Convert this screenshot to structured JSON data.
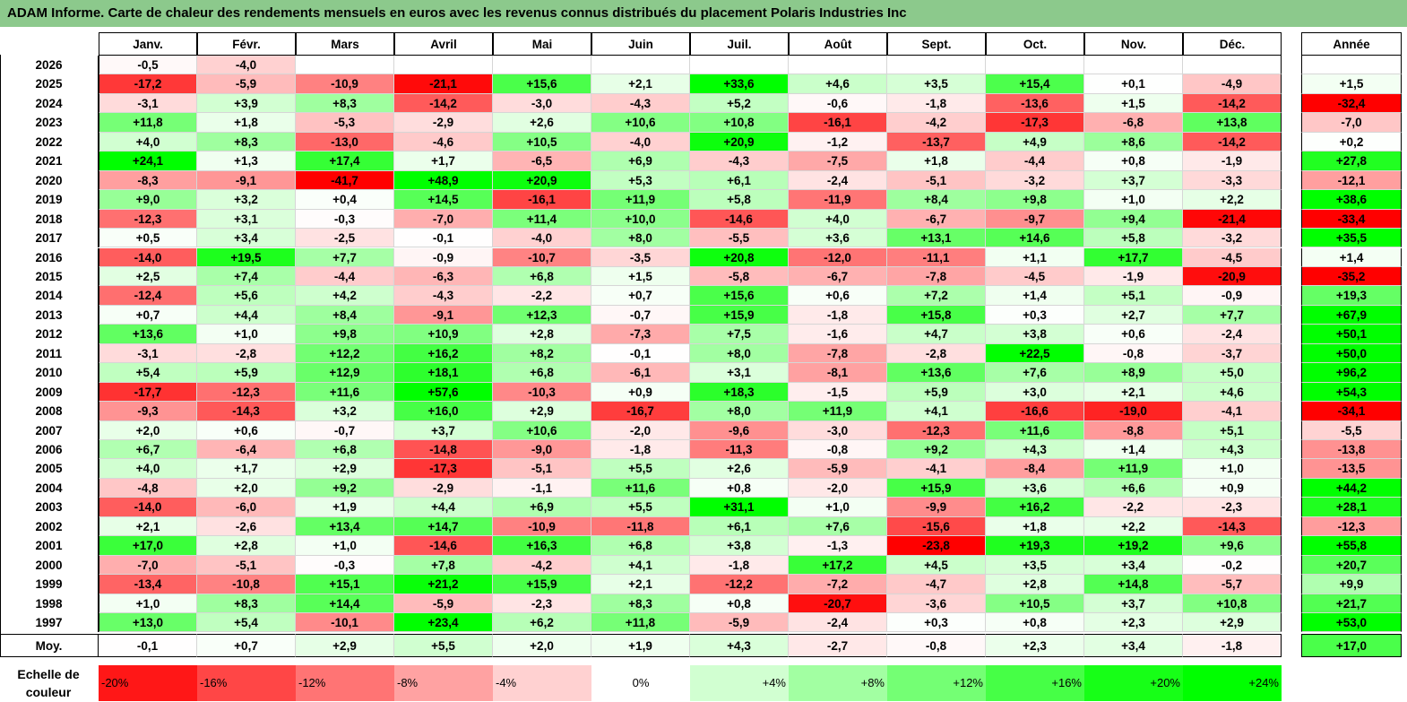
{
  "title": "ADAM Informe. Carte de chaleur des rendements mensuels en euros avec les revenus connus distribués du placement Polaris Industries Inc",
  "chart_data": {
    "type": "heatmap",
    "columns": [
      "Janv.",
      "Févr.",
      "Mars",
      "Avril",
      "Mai",
      "Juin",
      "Juil.",
      "Août",
      "Sept.",
      "Oct.",
      "Nov.",
      "Déc."
    ],
    "year_column": "Année",
    "rows": [
      {
        "label": "2026",
        "values": [
          "-0,5",
          "-4,0",
          "",
          "",
          "",
          "",
          "",
          "",
          "",
          "",
          "",
          ""
        ],
        "year": ""
      },
      {
        "label": "2025",
        "values": [
          "-17,2",
          "-5,9",
          "-10,9",
          "-21,1",
          "+15,6",
          "+2,1",
          "+33,6",
          "+4,6",
          "+3,5",
          "+15,4",
          "+0,1",
          "-4,9"
        ],
        "year": "+1,5"
      },
      {
        "label": "2024",
        "values": [
          "-3,1",
          "+3,9",
          "+8,3",
          "-14,2",
          "-3,0",
          "-4,3",
          "+5,2",
          "-0,6",
          "-1,8",
          "-13,6",
          "+1,5",
          "-14,2"
        ],
        "year": "-32,4"
      },
      {
        "label": "2023",
        "values": [
          "+11,8",
          "+1,8",
          "-5,3",
          "-2,9",
          "+2,6",
          "+10,6",
          "+10,8",
          "-16,1",
          "-4,2",
          "-17,3",
          "-6,8",
          "+13,8"
        ],
        "year": "-7,0"
      },
      {
        "label": "2022",
        "values": [
          "+4,0",
          "+8,3",
          "-13,0",
          "-4,6",
          "+10,5",
          "-4,0",
          "+20,9",
          "-1,2",
          "-13,7",
          "+4,9",
          "+8,6",
          "-14,2"
        ],
        "year": "+0,2"
      },
      {
        "label": "2021",
        "values": [
          "+24,1",
          "+1,3",
          "+17,4",
          "+1,7",
          "-6,5",
          "+6,9",
          "-4,3",
          "-7,5",
          "+1,8",
          "-4,4",
          "+0,8",
          "-1,9"
        ],
        "year": "+27,8"
      },
      {
        "label": "2020",
        "values": [
          "-8,3",
          "-9,1",
          "-41,7",
          "+48,9",
          "+20,9",
          "+5,3",
          "+6,1",
          "-2,4",
          "-5,1",
          "-3,2",
          "+3,7",
          "-3,3"
        ],
        "year": "-12,1"
      },
      {
        "label": "2019",
        "values": [
          "+9,0",
          "+3,2",
          "+0,4",
          "+14,5",
          "-16,1",
          "+11,9",
          "+5,8",
          "-11,9",
          "+8,4",
          "+9,8",
          "+1,0",
          "+2,2"
        ],
        "year": "+38,6"
      },
      {
        "label": "2018",
        "values": [
          "-12,3",
          "+3,1",
          "-0,3",
          "-7,0",
          "+11,4",
          "+10,0",
          "-14,6",
          "+4,0",
          "-6,7",
          "-9,7",
          "+9,4",
          "-21,4"
        ],
        "year": "-33,4"
      },
      {
        "label": "2017",
        "values": [
          "+0,5",
          "+3,4",
          "-2,5",
          "-0,1",
          "-4,0",
          "+8,0",
          "-5,5",
          "+3,6",
          "+13,1",
          "+14,6",
          "+5,8",
          "-3,2"
        ],
        "year": "+35,5"
      },
      {
        "label": "2016",
        "values": [
          "-14,0",
          "+19,5",
          "+7,7",
          "-0,9",
          "-10,7",
          "-3,5",
          "+20,8",
          "-12,0",
          "-11,1",
          "+1,1",
          "+17,7",
          "-4,5"
        ],
        "year": "+1,4"
      },
      {
        "label": "2015",
        "values": [
          "+2,5",
          "+7,4",
          "-4,4",
          "-6,3",
          "+6,8",
          "+1,5",
          "-5,8",
          "-6,7",
          "-7,8",
          "-4,5",
          "-1,9",
          "-20,9"
        ],
        "year": "-35,2"
      },
      {
        "label": "2014",
        "values": [
          "-12,4",
          "+5,6",
          "+4,2",
          "-4,3",
          "-2,2",
          "+0,7",
          "+15,6",
          "+0,6",
          "+7,2",
          "+1,4",
          "+5,1",
          "-0,9"
        ],
        "year": "+19,3"
      },
      {
        "label": "2013",
        "values": [
          "+0,7",
          "+4,4",
          "+8,4",
          "-9,1",
          "+12,3",
          "-0,7",
          "+15,9",
          "-1,8",
          "+15,8",
          "+0,3",
          "+2,7",
          "+7,7"
        ],
        "year": "+67,9"
      },
      {
        "label": "2012",
        "values": [
          "+13,6",
          "+1,0",
          "+9,8",
          "+10,9",
          "+2,8",
          "-7,3",
          "+7,5",
          "-1,6",
          "+4,7",
          "+3,8",
          "+0,6",
          "-2,4"
        ],
        "year": "+50,1"
      },
      {
        "label": "2011",
        "values": [
          "-3,1",
          "-2,8",
          "+12,2",
          "+16,2",
          "+8,2",
          "-0,1",
          "+8,0",
          "-7,8",
          "-2,8",
          "+22,5",
          "-0,8",
          "-3,7"
        ],
        "year": "+50,0"
      },
      {
        "label": "2010",
        "values": [
          "+5,4",
          "+5,9",
          "+12,9",
          "+18,1",
          "+6,8",
          "-6,1",
          "+3,1",
          "-8,1",
          "+13,6",
          "+7,6",
          "+8,9",
          "+5,0"
        ],
        "year": "+96,2"
      },
      {
        "label": "2009",
        "values": [
          "-17,7",
          "-12,3",
          "+11,6",
          "+57,6",
          "-10,3",
          "+0,9",
          "+18,3",
          "-1,5",
          "+5,9",
          "+3,0",
          "+2,1",
          "+4,6"
        ],
        "year": "+54,3"
      },
      {
        "label": "2008",
        "values": [
          "-9,3",
          "-14,3",
          "+3,2",
          "+16,0",
          "+2,9",
          "-16,7",
          "+8,0",
          "+11,9",
          "+4,1",
          "-16,6",
          "-19,0",
          "-4,1"
        ],
        "year": "-34,1"
      },
      {
        "label": "2007",
        "values": [
          "+2,0",
          "+0,6",
          "-0,7",
          "+3,7",
          "+10,6",
          "-2,0",
          "-9,6",
          "-3,0",
          "-12,3",
          "+11,6",
          "-8,8",
          "+5,1"
        ],
        "year": "-5,5"
      },
      {
        "label": "2006",
        "values": [
          "+6,7",
          "-6,4",
          "+6,8",
          "-14,8",
          "-9,0",
          "-1,8",
          "-11,3",
          "-0,8",
          "+9,2",
          "+4,3",
          "+1,4",
          "+4,3"
        ],
        "year": "-13,8"
      },
      {
        "label": "2005",
        "values": [
          "+4,0",
          "+1,7",
          "+2,9",
          "-17,3",
          "-5,1",
          "+5,5",
          "+2,6",
          "-5,9",
          "-4,1",
          "-8,4",
          "+11,9",
          "+1,0"
        ],
        "year": "-13,5"
      },
      {
        "label": "2004",
        "values": [
          "-4,8",
          "+2,0",
          "+9,2",
          "-2,9",
          "-1,1",
          "+11,6",
          "+0,8",
          "-2,0",
          "+15,9",
          "+3,6",
          "+6,6",
          "+0,9"
        ],
        "year": "+44,2"
      },
      {
        "label": "2003",
        "values": [
          "-14,0",
          "-6,0",
          "+1,9",
          "+4,4",
          "+6,9",
          "+5,5",
          "+31,1",
          "+1,0",
          "-9,9",
          "+16,2",
          "-2,2",
          "-2,3"
        ],
        "year": "+28,1"
      },
      {
        "label": "2002",
        "values": [
          "+2,1",
          "-2,6",
          "+13,4",
          "+14,7",
          "-10,9",
          "-11,8",
          "+6,1",
          "+7,6",
          "-15,6",
          "+1,8",
          "+2,2",
          "-14,3"
        ],
        "year": "-12,3"
      },
      {
        "label": "2001",
        "values": [
          "+17,0",
          "+2,8",
          "+1,0",
          "-14,6",
          "+16,3",
          "+6,8",
          "+3,8",
          "-1,3",
          "-23,8",
          "+19,3",
          "+19,2",
          "+9,6"
        ],
        "year": "+55,8"
      },
      {
        "label": "2000",
        "values": [
          "-7,0",
          "-5,1",
          "-0,3",
          "+7,8",
          "-4,2",
          "+4,1",
          "-1,8",
          "+17,2",
          "+4,5",
          "+3,5",
          "+3,4",
          "-0,2"
        ],
        "year": "+20,7"
      },
      {
        "label": "1999",
        "values": [
          "-13,4",
          "-10,8",
          "+15,1",
          "+21,2",
          "+15,9",
          "+2,1",
          "-12,2",
          "-7,2",
          "-4,7",
          "+2,8",
          "+14,8",
          "-5,7"
        ],
        "year": "+9,9"
      },
      {
        "label": "1998",
        "values": [
          "+1,0",
          "+8,3",
          "+14,4",
          "-5,9",
          "-2,3",
          "+8,3",
          "+0,8",
          "-20,7",
          "-3,6",
          "+10,5",
          "+3,7",
          "+10,8"
        ],
        "year": "+21,7"
      },
      {
        "label": "1997",
        "values": [
          "+13,0",
          "+5,4",
          "-10,1",
          "+23,4",
          "+6,2",
          "+11,8",
          "-5,9",
          "-2,4",
          "+0,3",
          "+0,8",
          "+2,3",
          "+2,9"
        ],
        "year": "+53,0"
      }
    ],
    "average": {
      "label": "Moy.",
      "values": [
        "-0,1",
        "+0,7",
        "+2,9",
        "+5,5",
        "+2,0",
        "+1,9",
        "+4,3",
        "-2,7",
        "-0,8",
        "+2,3",
        "+3,4",
        "-1,8"
      ],
      "year": "+17,0"
    },
    "legend": {
      "label": "Echelle de couleur",
      "stops": [
        "-20%",
        "-16%",
        "-12%",
        "-8%",
        "-4%",
        "0%",
        "+4%",
        "+8%",
        "+12%",
        "+16%",
        "+20%",
        "+24%"
      ]
    },
    "colors": {
      "negative": "#ff0000",
      "positive": "#00ff00",
      "neutral": "#ffffff",
      "title_bg": "#8cc98c"
    }
  }
}
